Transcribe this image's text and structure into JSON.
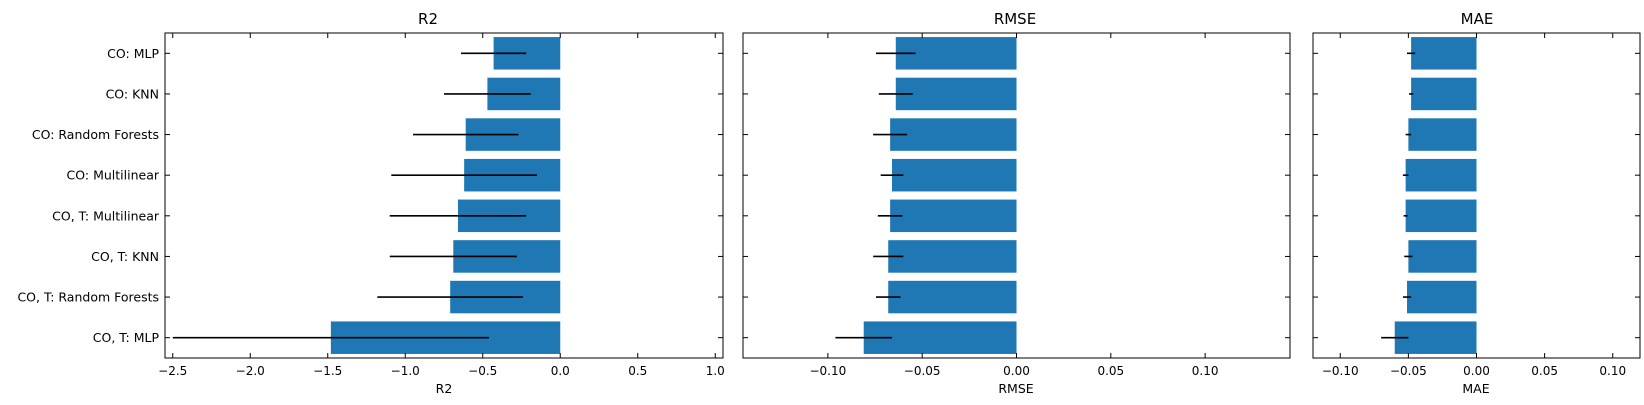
{
  "chart_data": [
    {
      "type": "bar",
      "orientation": "horizontal",
      "title": "R2",
      "xlabel": "R2",
      "ylabel": "",
      "xlim": [
        -2.55,
        1.05
      ],
      "xticks": [
        -2.5,
        -2.0,
        -1.5,
        -1.0,
        -0.5,
        0.0,
        0.5,
        1.0
      ],
      "xtick_labels": [
        "−2.5",
        "−2.0",
        "−1.5",
        "−1.0",
        "−0.5",
        "0.0",
        "0.5",
        "1.0"
      ],
      "categories": [
        "CO: MLP",
        "CO: KNN",
        "CO: Random Forests",
        "CO: Multilinear",
        "CO, T: Multilinear",
        "CO, T: KNN",
        "CO, T: Random Forests",
        "CO, T: MLP"
      ],
      "values": [
        -0.43,
        -0.47,
        -0.61,
        -0.62,
        -0.66,
        -0.69,
        -0.71,
        -1.48
      ],
      "errors": [
        0.21,
        0.28,
        0.34,
        0.47,
        0.44,
        0.41,
        0.47,
        1.02
      ],
      "bar_color": "#1f77b4",
      "error_color": "#000000",
      "show_category_labels": true
    },
    {
      "type": "bar",
      "orientation": "horizontal",
      "title": "RMSE",
      "xlabel": "RMSE",
      "ylabel": "",
      "xlim": [
        -0.145,
        0.145
      ],
      "xticks": [
        -0.1,
        -0.05,
        0.0,
        0.05,
        0.1
      ],
      "xtick_labels": [
        "−0.10",
        "−0.05",
        "0.00",
        "0.05",
        "0.10"
      ],
      "categories": [
        "CO: MLP",
        "CO: KNN",
        "CO: Random Forests",
        "CO: Multilinear",
        "CO, T: Multilinear",
        "CO, T: KNN",
        "CO, T: Random Forests",
        "CO, T: MLP"
      ],
      "values": [
        -0.064,
        -0.064,
        -0.067,
        -0.066,
        -0.067,
        -0.068,
        -0.068,
        -0.081
      ],
      "errors": [
        0.0105,
        0.009,
        0.009,
        0.006,
        0.0065,
        0.008,
        0.0065,
        0.015
      ],
      "bar_color": "#1f77b4",
      "error_color": "#000000",
      "show_category_labels": false
    },
    {
      "type": "bar",
      "orientation": "horizontal",
      "title": "MAE",
      "xlabel": "MAE",
      "ylabel": "",
      "xlim": [
        -0.12,
        0.12
      ],
      "xticks": [
        -0.1,
        -0.05,
        0.0,
        0.05,
        0.1
      ],
      "xtick_labels": [
        "−0.10",
        "−0.05",
        "0.00",
        "0.05",
        "0.10"
      ],
      "categories": [
        "CO: MLP",
        "CO: KNN",
        "CO: Random Forests",
        "CO: Multilinear",
        "CO, T: Multilinear",
        "CO, T: KNN",
        "CO, T: Random Forests",
        "CO, T: MLP"
      ],
      "values": [
        -0.048,
        -0.048,
        -0.05,
        -0.052,
        -0.052,
        -0.05,
        -0.051,
        -0.06
      ],
      "errors": [
        0.003,
        0.0015,
        0.002,
        0.002,
        0.0015,
        0.003,
        0.003,
        0.01
      ],
      "bar_color": "#1f77b4",
      "error_color": "#000000",
      "show_category_labels": false
    }
  ]
}
